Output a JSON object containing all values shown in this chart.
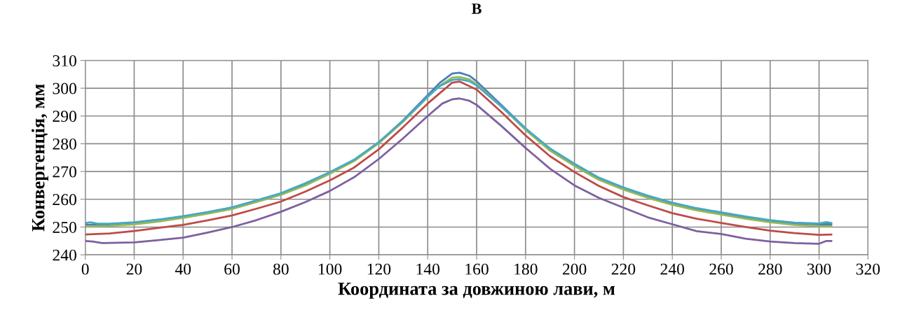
{
  "chart_data": {
    "type": "line",
    "title": "В",
    "xlabel": "Координата за довжиною лави, м",
    "ylabel": "Конвергенція, мм",
    "xlim": [
      0,
      320
    ],
    "ylim": [
      240,
      310
    ],
    "xticks": [
      0,
      20,
      40,
      60,
      80,
      100,
      120,
      140,
      160,
      180,
      200,
      220,
      240,
      260,
      280,
      300,
      320
    ],
    "yticks": [
      240,
      250,
      260,
      270,
      280,
      290,
      300,
      310
    ],
    "grid": true,
    "marker": "none",
    "line_style": "solid",
    "series": [
      {
        "color": "#4a7ebb",
        "x": [
          0,
          10,
          20,
          30,
          40,
          50,
          60,
          70,
          80,
          90,
          100,
          110,
          120,
          130,
          140,
          145,
          150,
          153,
          157,
          160,
          170,
          180,
          190,
          200,
          210,
          220,
          230,
          240,
          250,
          260,
          270,
          280,
          290,
          300,
          305
        ],
        "values": [
          250.8,
          251.0,
          251.6,
          252.6,
          253.8,
          255.3,
          257.0,
          259.5,
          262.0,
          265.5,
          269.5,
          274.0,
          280.5,
          288.5,
          297.5,
          302.0,
          305.3,
          305.6,
          304.5,
          302.5,
          294.0,
          285.5,
          278.0,
          272.5,
          267.5,
          264.0,
          261.0,
          258.5,
          256.5,
          255.0,
          253.5,
          252.2,
          251.3,
          251.0,
          251.0
        ]
      },
      {
        "color": "#be4b48",
        "x": [
          0,
          10,
          20,
          30,
          40,
          50,
          60,
          70,
          80,
          90,
          100,
          110,
          120,
          130,
          140,
          150,
          153,
          160,
          170,
          180,
          190,
          200,
          210,
          220,
          230,
          240,
          250,
          260,
          270,
          280,
          290,
          300,
          305
        ],
        "values": [
          247.3,
          247.7,
          248.6,
          249.7,
          250.8,
          252.4,
          254.2,
          256.6,
          259.2,
          262.8,
          266.8,
          271.5,
          278.0,
          286.0,
          294.5,
          302.0,
          302.4,
          299.5,
          291.5,
          283.0,
          275.5,
          269.8,
          264.8,
          260.8,
          257.8,
          255.0,
          253.0,
          251.5,
          250.0,
          248.7,
          247.8,
          247.2,
          247.3
        ]
      },
      {
        "color": "#98b954",
        "x": [
          0,
          10,
          20,
          30,
          40,
          50,
          60,
          70,
          80,
          90,
          100,
          110,
          120,
          130,
          140,
          145,
          150,
          153,
          157,
          160,
          170,
          180,
          190,
          200,
          210,
          220,
          230,
          240,
          250,
          260,
          270,
          280,
          290,
          300,
          305
        ],
        "values": [
          250.2,
          250.4,
          251.0,
          252.0,
          253.3,
          254.8,
          256.5,
          259.0,
          261.6,
          265.0,
          269.2,
          273.8,
          280.2,
          288.0,
          296.8,
          301.0,
          303.8,
          304.0,
          303.2,
          301.5,
          293.5,
          285.0,
          277.5,
          272.0,
          267.0,
          263.5,
          260.5,
          258.0,
          256.0,
          254.5,
          253.0,
          251.7,
          250.8,
          250.3,
          250.3
        ]
      },
      {
        "color": "#7d60a0",
        "x": [
          0,
          3,
          7,
          20,
          30,
          40,
          50,
          60,
          70,
          80,
          90,
          100,
          110,
          120,
          130,
          140,
          146,
          150,
          153,
          157,
          160,
          170,
          180,
          190,
          200,
          210,
          220,
          230,
          240,
          250,
          260,
          270,
          280,
          290,
          300,
          303,
          305
        ],
        "values": [
          245.0,
          244.8,
          244.2,
          244.5,
          245.3,
          246.2,
          248.0,
          250.0,
          252.5,
          255.5,
          259.0,
          263.0,
          268.0,
          274.5,
          282.0,
          290.0,
          294.5,
          296.0,
          296.3,
          295.5,
          294.0,
          286.5,
          278.5,
          271.0,
          265.0,
          260.5,
          257.0,
          253.5,
          251.0,
          248.5,
          247.5,
          245.8,
          244.8,
          244.2,
          244.0,
          245.0,
          245.0
        ]
      },
      {
        "color": "#46aac5",
        "x": [
          0,
          2,
          5,
          10,
          20,
          30,
          40,
          50,
          60,
          70,
          80,
          90,
          100,
          110,
          120,
          130,
          140,
          145,
          150,
          153,
          157,
          160,
          170,
          180,
          190,
          200,
          210,
          220,
          230,
          240,
          250,
          260,
          270,
          280,
          290,
          300,
          303,
          305
        ],
        "values": [
          251.4,
          251.7,
          251.2,
          251.2,
          251.7,
          252.7,
          253.9,
          255.4,
          257.1,
          259.6,
          262.2,
          265.8,
          269.8,
          274.3,
          280.6,
          288.3,
          297.0,
          300.8,
          303.0,
          303.2,
          302.5,
          301.0,
          293.5,
          285.5,
          278.3,
          272.8,
          267.8,
          264.3,
          261.3,
          258.8,
          256.8,
          255.3,
          253.8,
          252.5,
          251.6,
          251.3,
          251.8,
          251.5
        ]
      }
    ]
  }
}
